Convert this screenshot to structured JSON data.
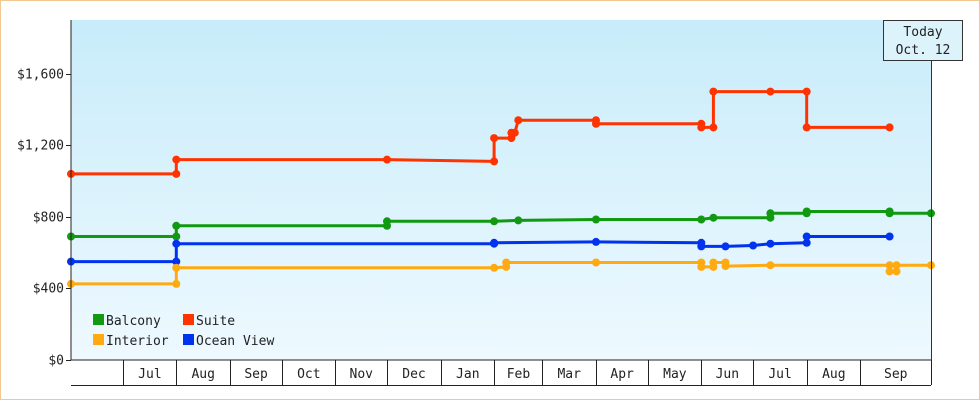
{
  "chart_data": {
    "type": "line",
    "step": true,
    "title": "",
    "xlabel": "",
    "ylabel": "",
    "x_range": [
      "2024-06-01",
      "2025-10-12"
    ],
    "ylim": [
      0,
      1900
    ],
    "y_ticks": [
      0,
      400,
      800,
      1200,
      1600
    ],
    "y_tick_labels": [
      "$0",
      "$400",
      "$800",
      "$1,200",
      "$1,600"
    ],
    "month_ticks": [
      {
        "date": "2024-07-01",
        "label": "Jul"
      },
      {
        "date": "2024-08-01",
        "label": "Aug"
      },
      {
        "date": "2024-09-01",
        "label": "Sep"
      },
      {
        "date": "2024-10-01",
        "label": "Oct"
      },
      {
        "date": "2024-11-01",
        "label": "Nov"
      },
      {
        "date": "2024-12-01",
        "label": "Dec"
      },
      {
        "date": "2025-01-01",
        "label": "Jan"
      },
      {
        "date": "2025-02-01",
        "label": "Feb"
      },
      {
        "date": "2025-03-01",
        "label": "Mar"
      },
      {
        "date": "2025-04-01",
        "label": "Apr"
      },
      {
        "date": "2025-05-01",
        "label": "May"
      },
      {
        "date": "2025-06-01",
        "label": "Jun"
      },
      {
        "date": "2025-07-01",
        "label": "Jul"
      },
      {
        "date": "2025-08-01",
        "label": "Aug"
      },
      {
        "date": "2025-09-01",
        "label": "Sep"
      }
    ],
    "today": {
      "date": "2025-10-12",
      "line1": "Today",
      "line2": "Oct. 12"
    },
    "legend_position": "bottom-left",
    "series": [
      {
        "name": "Suite",
        "color": "#ff3300",
        "points": [
          [
            "2024-06-01",
            1040
          ],
          [
            "2024-08-01",
            1040
          ],
          [
            "2024-08-01",
            1120
          ],
          [
            "2024-12-01",
            1120
          ],
          [
            "2025-02-01",
            1110
          ],
          [
            "2025-02-01",
            1240
          ],
          [
            "2025-02-11",
            1240
          ],
          [
            "2025-02-11",
            1270
          ],
          [
            "2025-02-13",
            1270
          ],
          [
            "2025-02-15",
            1340
          ],
          [
            "2025-04-01",
            1340
          ],
          [
            "2025-04-01",
            1320
          ],
          [
            "2025-06-01",
            1320
          ],
          [
            "2025-06-01",
            1300
          ],
          [
            "2025-06-08",
            1300
          ],
          [
            "2025-06-08",
            1500
          ],
          [
            "2025-07-11",
            1500
          ],
          [
            "2025-08-01",
            1500
          ],
          [
            "2025-08-01",
            1300
          ],
          [
            "2025-09-18",
            1300
          ]
        ]
      },
      {
        "name": "Balcony",
        "color": "#119911",
        "points": [
          [
            "2024-06-01",
            690
          ],
          [
            "2024-08-01",
            690
          ],
          [
            "2024-08-01",
            750
          ],
          [
            "2024-12-01",
            750
          ],
          [
            "2024-12-01",
            775
          ],
          [
            "2025-02-01",
            775
          ],
          [
            "2025-02-15",
            780
          ],
          [
            "2025-04-01",
            785
          ],
          [
            "2025-06-01",
            785
          ],
          [
            "2025-06-08",
            795
          ],
          [
            "2025-07-11",
            795
          ],
          [
            "2025-07-11",
            820
          ],
          [
            "2025-08-01",
            820
          ],
          [
            "2025-08-01",
            830
          ],
          [
            "2025-09-18",
            830
          ],
          [
            "2025-09-18",
            820
          ],
          [
            "2025-10-12",
            820
          ]
        ]
      },
      {
        "name": "Ocean View",
        "color": "#0033ee",
        "points": [
          [
            "2024-06-01",
            550
          ],
          [
            "2024-08-01",
            550
          ],
          [
            "2024-08-01",
            650
          ],
          [
            "2025-02-01",
            650
          ],
          [
            "2025-02-01",
            655
          ],
          [
            "2025-04-01",
            660
          ],
          [
            "2025-06-01",
            655
          ],
          [
            "2025-06-01",
            635
          ],
          [
            "2025-06-15",
            635
          ],
          [
            "2025-07-01",
            640
          ],
          [
            "2025-07-11",
            650
          ],
          [
            "2025-08-01",
            655
          ],
          [
            "2025-08-01",
            690
          ],
          [
            "2025-09-18",
            690
          ]
        ]
      },
      {
        "name": "Interior",
        "color": "#ffaa11",
        "points": [
          [
            "2024-06-01",
            425
          ],
          [
            "2024-08-01",
            425
          ],
          [
            "2024-08-01",
            515
          ],
          [
            "2025-02-01",
            515
          ],
          [
            "2025-02-08",
            520
          ],
          [
            "2025-02-08",
            545
          ],
          [
            "2025-04-01",
            545
          ],
          [
            "2025-06-01",
            545
          ],
          [
            "2025-06-01",
            520
          ],
          [
            "2025-06-08",
            520
          ],
          [
            "2025-06-08",
            545
          ],
          [
            "2025-06-15",
            545
          ],
          [
            "2025-06-15",
            525
          ],
          [
            "2025-07-11",
            530
          ],
          [
            "2025-09-18",
            530
          ],
          [
            "2025-09-18",
            495
          ],
          [
            "2025-09-22",
            495
          ],
          [
            "2025-09-22",
            530
          ],
          [
            "2025-10-12",
            530
          ]
        ]
      }
    ],
    "legend": [
      {
        "name": "Balcony",
        "color": "#119911"
      },
      {
        "name": "Suite",
        "color": "#ff3300"
      },
      {
        "name": "Interior",
        "color": "#ffaa11"
      },
      {
        "name": "Ocean View",
        "color": "#0033ee"
      }
    ]
  }
}
